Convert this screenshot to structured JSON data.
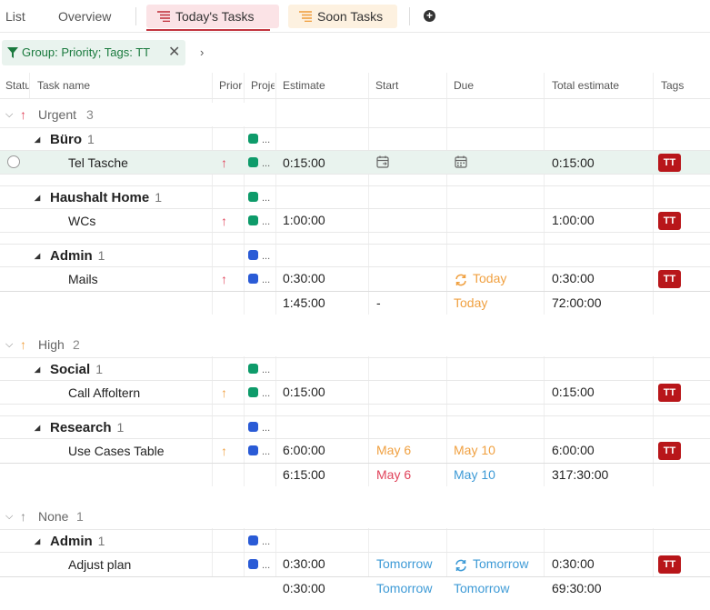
{
  "tabs": {
    "list": "List",
    "overview": "Overview",
    "today": "Today's Tasks",
    "soon": "Soon Tasks"
  },
  "filter": {
    "label": "Group: Priority; Tags: TT"
  },
  "columns": {
    "status": "Statu",
    "task_name": "Task name",
    "priority": "Prior",
    "project": "Proje",
    "estimate": "Estimate",
    "start": "Start",
    "due": "Due",
    "total_estimate": "Total estimate",
    "tags": "Tags"
  },
  "groups": [
    {
      "name": "Urgent",
      "count": "3",
      "summary": {
        "estimate": "1:45:00",
        "start": "-",
        "due": "Today",
        "total": "72:00:00"
      },
      "projects": [
        {
          "name": "Büro",
          "count": "1",
          "color": "#0e9b6a",
          "tasks": [
            {
              "name": "Tel Tasche",
              "estimate": "0:15:00",
              "start": "",
              "due": "",
              "total": "0:15:00",
              "tag": "TT"
            }
          ]
        },
        {
          "name": "Haushalt Home",
          "count": "1",
          "color": "#0e9b6a",
          "tasks": [
            {
              "name": "WCs",
              "estimate": "1:00:00",
              "start": "",
              "due": "",
              "total": "1:00:00",
              "tag": "TT"
            }
          ]
        },
        {
          "name": "Admin",
          "count": "1",
          "color": "#2a5bd6",
          "tasks": [
            {
              "name": "Mails",
              "estimate": "0:30:00",
              "start": "",
              "due": "Today",
              "total": "0:30:00",
              "tag": "TT"
            }
          ]
        }
      ]
    },
    {
      "name": "High",
      "count": "2",
      "summary": {
        "estimate": "6:15:00",
        "start": "May 6",
        "due": "May 10",
        "total": "317:30:00"
      },
      "projects": [
        {
          "name": "Social",
          "count": "1",
          "color": "#0e9b6a",
          "tasks": [
            {
              "name": "Call Affoltern",
              "estimate": "0:15:00",
              "start": "",
              "due": "",
              "total": "0:15:00",
              "tag": "TT"
            }
          ]
        },
        {
          "name": "Research",
          "count": "1",
          "color": "#2a5bd6",
          "tasks": [
            {
              "name": "Use Cases Table",
              "estimate": "6:00:00",
              "start": "May 6",
              "due": "May 10",
              "total": "6:00:00",
              "tag": "TT"
            }
          ]
        }
      ]
    },
    {
      "name": "None",
      "count": "1",
      "summary": {
        "estimate": "0:30:00",
        "start": "Tomorrow",
        "due": "Tomorrow",
        "total": "69:30:00"
      },
      "projects": [
        {
          "name": "Admin",
          "count": "1",
          "color": "#2a5bd6",
          "tasks": [
            {
              "name": "Adjust plan",
              "estimate": "0:30:00",
              "start": "Tomorrow",
              "due": "Tomorrow",
              "total": "0:30:00",
              "tag": "TT"
            }
          ]
        }
      ]
    }
  ],
  "project_ellipsis": "...",
  "colors": {
    "accent_red": "#c2353f",
    "tag_red": "#b8161a",
    "urgent": "#e0435a",
    "high": "#f0a040",
    "none": "#888888",
    "today_orange": "#f0a040",
    "date_blue": "#3d9ad6",
    "date_red": "#e0435a",
    "selected_row": "#e9f3ee"
  }
}
